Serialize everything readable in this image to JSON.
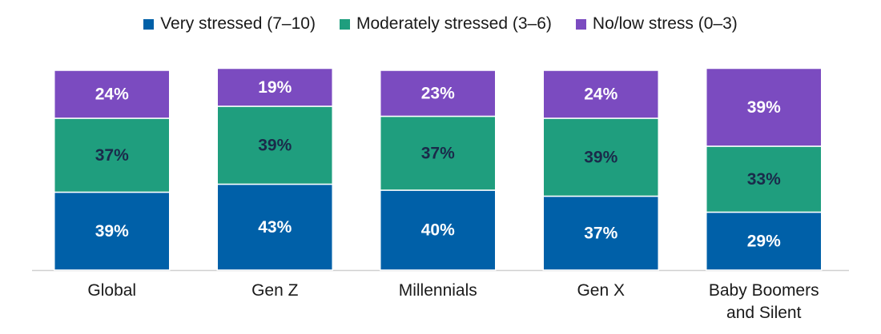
{
  "chart_data": {
    "type": "stacked_bar",
    "categories": [
      "Global",
      "Gen Z",
      "Millennials",
      "Gen X",
      "Baby Boomers and Silent"
    ],
    "series": [
      {
        "name": "Very stressed (7–10)",
        "color": "#0060a8",
        "label_color": "#ffffff",
        "values": [
          39,
          43,
          40,
          37,
          29
        ],
        "value_labels": [
          "39%",
          "43%",
          "40%",
          "37%",
          "29%"
        ]
      },
      {
        "name": "Moderately stressed (3–6)",
        "color": "#1f9e7e",
        "label_color": "#1a2a4a",
        "values": [
          37,
          39,
          37,
          39,
          33
        ],
        "value_labels": [
          "37%",
          "39%",
          "37%",
          "39%",
          "33%"
        ]
      },
      {
        "name": "No/low stress (0–3)",
        "color": "#7b4bc0",
        "label_color": "#ffffff",
        "values": [
          24,
          19,
          23,
          24,
          39
        ],
        "value_labels": [
          "24%",
          "19%",
          "23%",
          "24%",
          "39%"
        ]
      }
    ]
  }
}
